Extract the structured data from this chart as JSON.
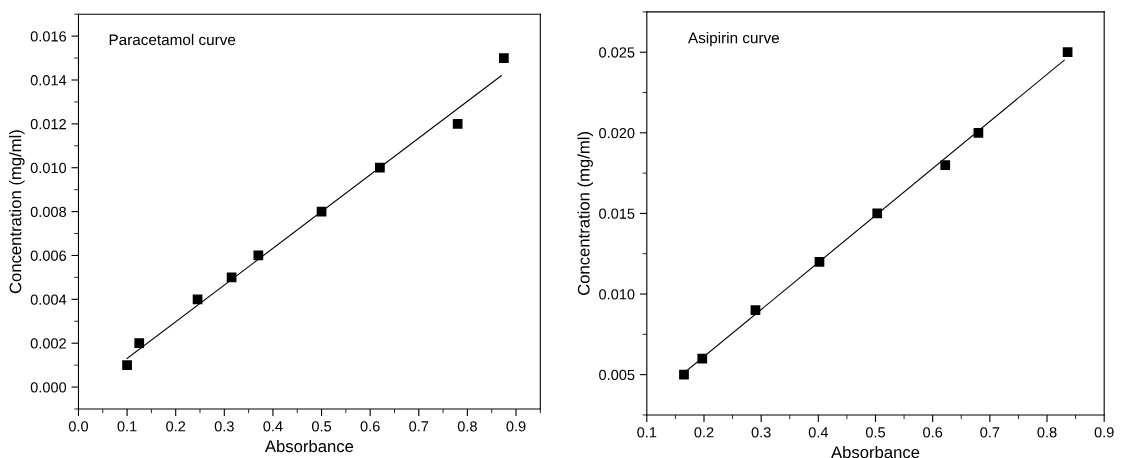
{
  "chart_data": [
    {
      "type": "scatter",
      "xlabel": "Absorbance",
      "ylabel": "Concentration (mg/ml)",
      "annotations": [
        "Paracetamol curve"
      ],
      "marker": "square",
      "grid": false,
      "xlim": [
        0.0,
        0.95
      ],
      "xticks": [
        {
          "value": 0.0,
          "label": "0.0"
        },
        0.1,
        0.2,
        0.3,
        0.4,
        0.5,
        0.6,
        0.7,
        0.8,
        0.9
      ],
      "ylim": [
        -0.001,
        0.017
      ],
      "yticks": [
        {
          "value": 0,
          "label": "0.000"
        },
        {
          "value": 0.002,
          "label": "0.002"
        },
        {
          "value": 0.004,
          "label": "0.004"
        },
        {
          "value": 0.006,
          "label": "0.006"
        },
        {
          "value": 0.008,
          "label": "0.008"
        },
        {
          "value": 0.01,
          "label": "0.010"
        },
        {
          "value": 0.012,
          "label": "0.012"
        },
        {
          "value": 0.014,
          "label": "0.014"
        },
        {
          "value": 0.016,
          "label": "0.016"
        }
      ],
      "series": [
        {
          "color": "#000000",
          "x": [
            0.1,
            0.125,
            0.245,
            0.315,
            0.37,
            0.5,
            0.62,
            0.78,
            0.875
          ],
          "values": [
            0.001,
            0.002,
            0.004,
            0.005,
            0.006,
            0.008,
            0.01,
            0.012,
            0.015
          ]
        },
        {
          "type": "line",
          "color": "#000000",
          "marker": "none",
          "x": [
            0.1,
            0.87
          ],
          "values": [
            0.0013,
            0.0142
          ]
        }
      ]
    },
    {
      "type": "scatter",
      "xlabel": "Absorbance",
      "ylabel": "Concentration (mg/ml)",
      "annotations": [
        "Asipirin curve"
      ],
      "marker": "square",
      "grid": false,
      "xlim": [
        0.1,
        0.9
      ],
      "xticks": [
        0.1,
        0.2,
        0.3,
        0.4,
        0.5,
        0.6,
        0.7,
        0.8,
        0.9
      ],
      "ylim": [
        0.0025,
        0.0275
      ],
      "yticks": [
        {
          "value": 0.005,
          "label": "0.005"
        },
        {
          "value": 0.01,
          "label": "0.010"
        },
        {
          "value": 0.015,
          "label": "0.015"
        },
        {
          "value": 0.02,
          "label": "0.020"
        },
        {
          "value": 0.025,
          "label": "0.025"
        }
      ],
      "series": [
        {
          "color": "#000000",
          "x": [
            0.165,
            0.197,
            0.29,
            0.402,
            0.503,
            0.622,
            0.68,
            0.836
          ],
          "values": [
            0.005,
            0.006,
            0.009,
            0.012,
            0.015,
            0.018,
            0.02,
            0.025
          ]
        },
        {
          "type": "line",
          "color": "#000000",
          "marker": "none",
          "x": [
            0.165,
            0.83
          ],
          "values": [
            0.0051,
            0.0245
          ]
        }
      ]
    }
  ]
}
